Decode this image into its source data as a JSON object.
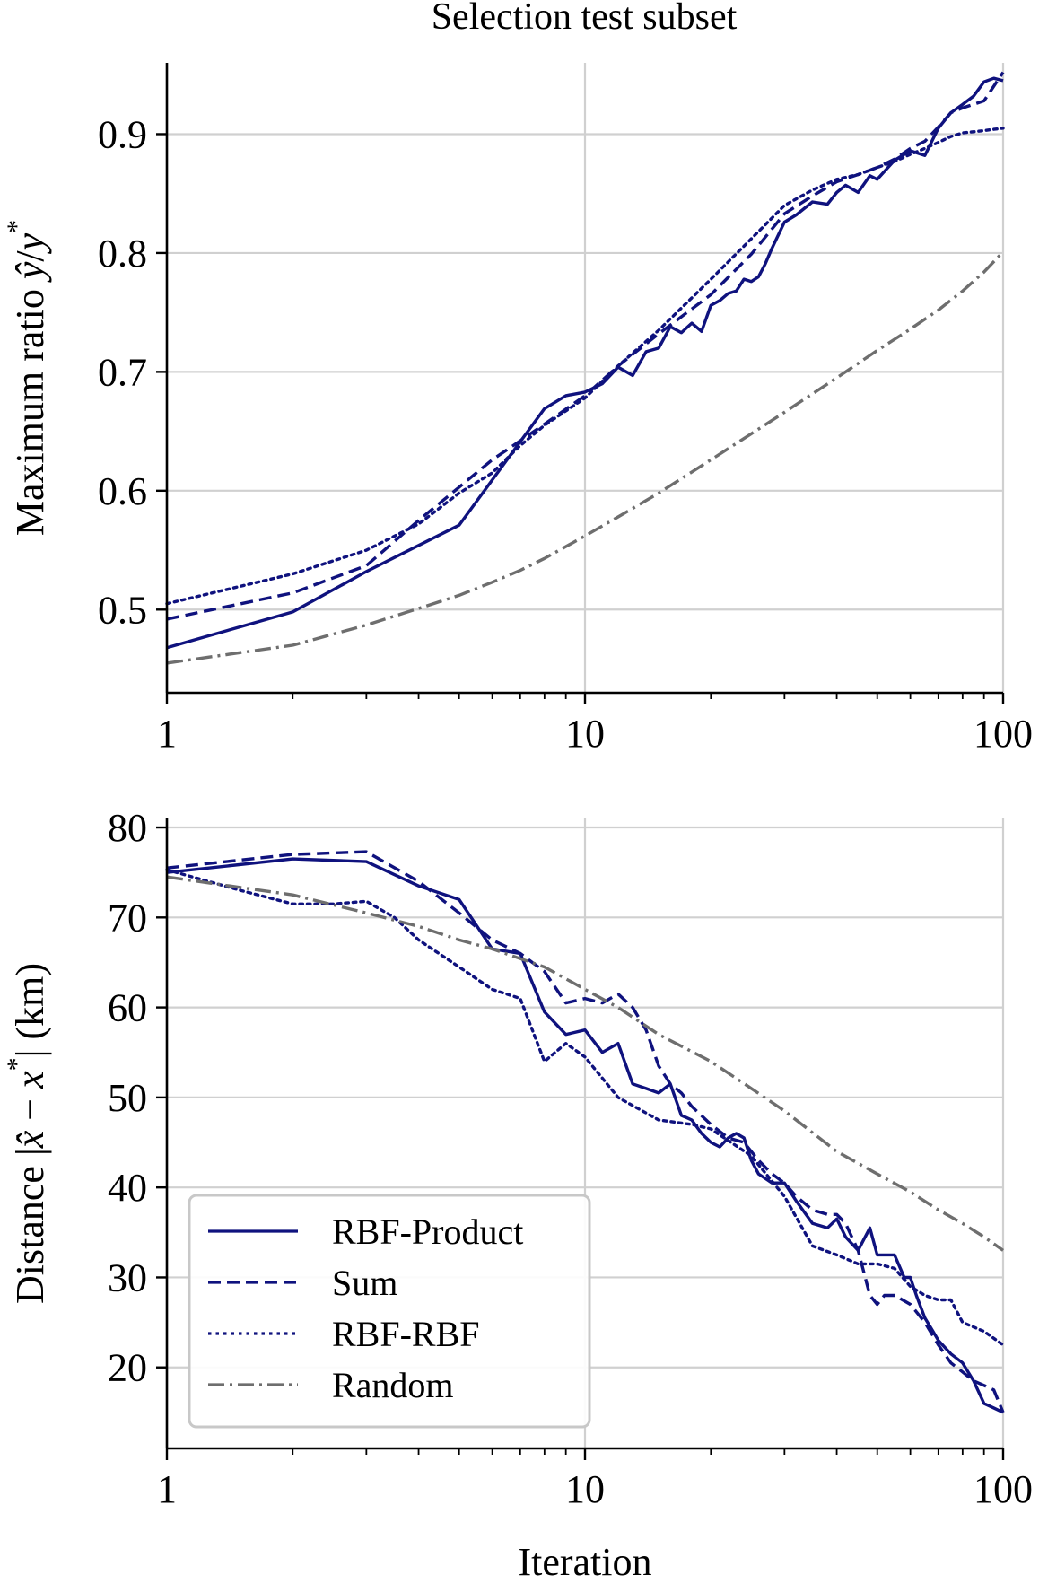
{
  "title": "Selection test subset",
  "colors": {
    "navy": "#0f127e",
    "gray": "#6e6e6e",
    "grid": "#d0d0d0",
    "legend_border": "#c8c8c8"
  },
  "chart_data": [
    {
      "type": "line",
      "title": "Selection test subset",
      "xscale": "log",
      "xlim": [
        1,
        100
      ],
      "ylim": [
        0.43,
        0.96
      ],
      "xticks": [
        1,
        10,
        100
      ],
      "xtick_labels": [
        "1",
        "10",
        "100"
      ],
      "yticks": [
        0.5,
        0.6,
        0.7,
        0.8,
        0.9
      ],
      "ytick_labels": [
        "0.5",
        "0.6",
        "0.7",
        "0.8",
        "0.9"
      ],
      "ylabel_parts": [
        "Maximum ratio ",
        "ŷ",
        "/",
        "y",
        "*"
      ],
      "xlabel": "",
      "grid": true,
      "series": [
        {
          "name": "RBF-Product",
          "style": "solid",
          "color": "#0f127e",
          "x": [
            1,
            2,
            3,
            5,
            8,
            9,
            10,
            11,
            12,
            13,
            14,
            15,
            16,
            17,
            18,
            19,
            20,
            21,
            22,
            23,
            24,
            25,
            26,
            27,
            28,
            30,
            32,
            35,
            38,
            40,
            42,
            45,
            48,
            50,
            55,
            60,
            65,
            70,
            75,
            80,
            85,
            90,
            95,
            100
          ],
          "values": [
            0.468,
            0.498,
            0.532,
            0.571,
            0.669,
            0.68,
            0.683,
            0.69,
            0.704,
            0.697,
            0.717,
            0.72,
            0.738,
            0.733,
            0.741,
            0.734,
            0.756,
            0.76,
            0.766,
            0.768,
            0.778,
            0.776,
            0.78,
            0.791,
            0.804,
            0.826,
            0.832,
            0.843,
            0.841,
            0.851,
            0.857,
            0.851,
            0.865,
            0.862,
            0.878,
            0.886,
            0.882,
            0.905,
            0.918,
            0.925,
            0.932,
            0.944,
            0.947,
            0.945
          ]
        },
        {
          "name": "Sum",
          "style": "dashed",
          "color": "#0f127e",
          "x": [
            1,
            2,
            3,
            4,
            5,
            6,
            7,
            8,
            10,
            12,
            15,
            20,
            25,
            30,
            35,
            40,
            45,
            50,
            55,
            60,
            65,
            70,
            75,
            80,
            90,
            100
          ],
          "values": [
            0.492,
            0.514,
            0.537,
            0.575,
            0.603,
            0.626,
            0.642,
            0.656,
            0.68,
            0.705,
            0.732,
            0.765,
            0.799,
            0.833,
            0.848,
            0.86,
            0.866,
            0.872,
            0.879,
            0.888,
            0.894,
            0.906,
            0.918,
            0.922,
            0.928,
            0.952
          ]
        },
        {
          "name": "RBF-RBF",
          "style": "dotted",
          "color": "#0f127e",
          "x": [
            1,
            2,
            3,
            4,
            5,
            6,
            7,
            8,
            10,
            12,
            15,
            20,
            25,
            30,
            35,
            40,
            45,
            50,
            55,
            60,
            65,
            70,
            75,
            80,
            90,
            100
          ],
          "values": [
            0.505,
            0.53,
            0.55,
            0.572,
            0.598,
            0.615,
            0.638,
            0.655,
            0.678,
            0.705,
            0.735,
            0.778,
            0.812,
            0.84,
            0.853,
            0.862,
            0.866,
            0.872,
            0.877,
            0.883,
            0.888,
            0.893,
            0.898,
            0.901,
            0.903,
            0.905
          ]
        },
        {
          "name": "Random",
          "style": "dashdot",
          "color": "#6e6e6e",
          "x": [
            1,
            2,
            3,
            4,
            5,
            6,
            7,
            8,
            10,
            12,
            15,
            20,
            25,
            30,
            40,
            50,
            60,
            70,
            80,
            90,
            100
          ],
          "values": [
            0.455,
            0.47,
            0.487,
            0.501,
            0.512,
            0.523,
            0.533,
            0.543,
            0.562,
            0.578,
            0.598,
            0.626,
            0.648,
            0.666,
            0.695,
            0.718,
            0.736,
            0.752,
            0.768,
            0.784,
            0.801
          ]
        }
      ]
    },
    {
      "type": "line",
      "xscale": "log",
      "xlim": [
        1,
        100
      ],
      "ylim": [
        11,
        81
      ],
      "xticks": [
        1,
        10,
        100
      ],
      "xtick_labels": [
        "1",
        "10",
        "100"
      ],
      "yticks": [
        20,
        30,
        40,
        50,
        60,
        70,
        80
      ],
      "ytick_labels": [
        "20",
        "30",
        "40",
        "50",
        "60",
        "70",
        "80"
      ],
      "ylabel_parts": [
        "Distance |",
        "x̂",
        " − ",
        "x",
        "*",
        "| (km)"
      ],
      "xlabel": "Iteration",
      "grid": true,
      "legend_position": "lower-left",
      "series": [
        {
          "name": "RBF-Product",
          "style": "solid",
          "color": "#0f127e",
          "x": [
            1,
            2,
            3,
            4,
            5,
            6,
            7,
            8,
            9,
            10,
            11,
            12,
            13,
            14,
            15,
            16,
            17,
            18,
            19,
            20,
            21,
            22,
            23,
            24,
            25,
            26,
            28,
            30,
            32,
            35,
            38,
            40,
            42,
            45,
            48,
            50,
            52,
            55,
            58,
            60,
            62,
            65,
            68,
            70,
            75,
            80,
            85,
            90,
            95,
            100
          ],
          "values": [
            75,
            76.5,
            76.2,
            73.5,
            72,
            66.5,
            66,
            59.5,
            57,
            57.5,
            55,
            56,
            51.5,
            51,
            50.5,
            51.5,
            48,
            47.5,
            46,
            45,
            44.5,
            45.5,
            46,
            45.5,
            43,
            41.5,
            40.5,
            40.5,
            38.5,
            36,
            35.5,
            36.5,
            34.5,
            33,
            35.5,
            32.5,
            32.5,
            32.5,
            30,
            30,
            28,
            25.5,
            24,
            23,
            21.5,
            20.5,
            18.5,
            16,
            15.5,
            15
          ]
        },
        {
          "name": "Sum",
          "style": "dashed",
          "color": "#0f127e",
          "x": [
            1,
            2,
            3,
            4,
            5,
            6,
            7,
            8,
            9,
            10,
            11,
            12,
            13,
            14,
            15,
            16,
            17,
            18,
            20,
            22,
            24,
            26,
            28,
            30,
            32,
            35,
            38,
            40,
            42,
            45,
            48,
            50,
            52,
            55,
            60,
            65,
            70,
            75,
            80,
            85,
            90,
            95,
            100
          ],
          "values": [
            75.5,
            77,
            77.3,
            74,
            70.5,
            67.5,
            66,
            64,
            60.5,
            61,
            60.5,
            61.5,
            60,
            57.5,
            53.5,
            51.5,
            50.5,
            49,
            47,
            45.5,
            45,
            43,
            41.5,
            40.5,
            39,
            37.5,
            37,
            37,
            36,
            33,
            28,
            27,
            28,
            28,
            27,
            25,
            22.5,
            20.5,
            19.5,
            18.5,
            18,
            17.5,
            15
          ]
        },
        {
          "name": "RBF-RBF",
          "style": "dotted",
          "color": "#0f127e",
          "x": [
            1,
            1.5,
            2,
            2.5,
            3,
            3.5,
            4,
            5,
            6,
            7,
            8,
            9,
            10,
            12,
            15,
            18,
            20,
            25,
            30,
            35,
            40,
            45,
            50,
            55,
            60,
            65,
            70,
            75,
            80,
            90,
            100
          ],
          "values": [
            75.3,
            73,
            71.5,
            71.5,
            71.8,
            70,
            67.5,
            64.5,
            62,
            61,
            54,
            56,
            54.5,
            50,
            47.5,
            47,
            46.5,
            43.5,
            39,
            33.5,
            32.5,
            31.5,
            31.5,
            31,
            29,
            28,
            27.5,
            27.5,
            25,
            24,
            22.5
          ]
        },
        {
          "name": "Random",
          "style": "dashdot",
          "color": "#6e6e6e",
          "x": [
            1,
            2,
            3,
            4,
            5,
            6,
            8,
            10,
            12,
            15,
            20,
            25,
            30,
            40,
            50,
            60,
            70,
            80,
            90,
            100
          ],
          "values": [
            74.5,
            72.5,
            70.5,
            69,
            67.5,
            66.5,
            64.5,
            62,
            60,
            57,
            54,
            51,
            48.5,
            44,
            41.5,
            39.5,
            37.5,
            36,
            34.5,
            33
          ]
        }
      ]
    }
  ]
}
